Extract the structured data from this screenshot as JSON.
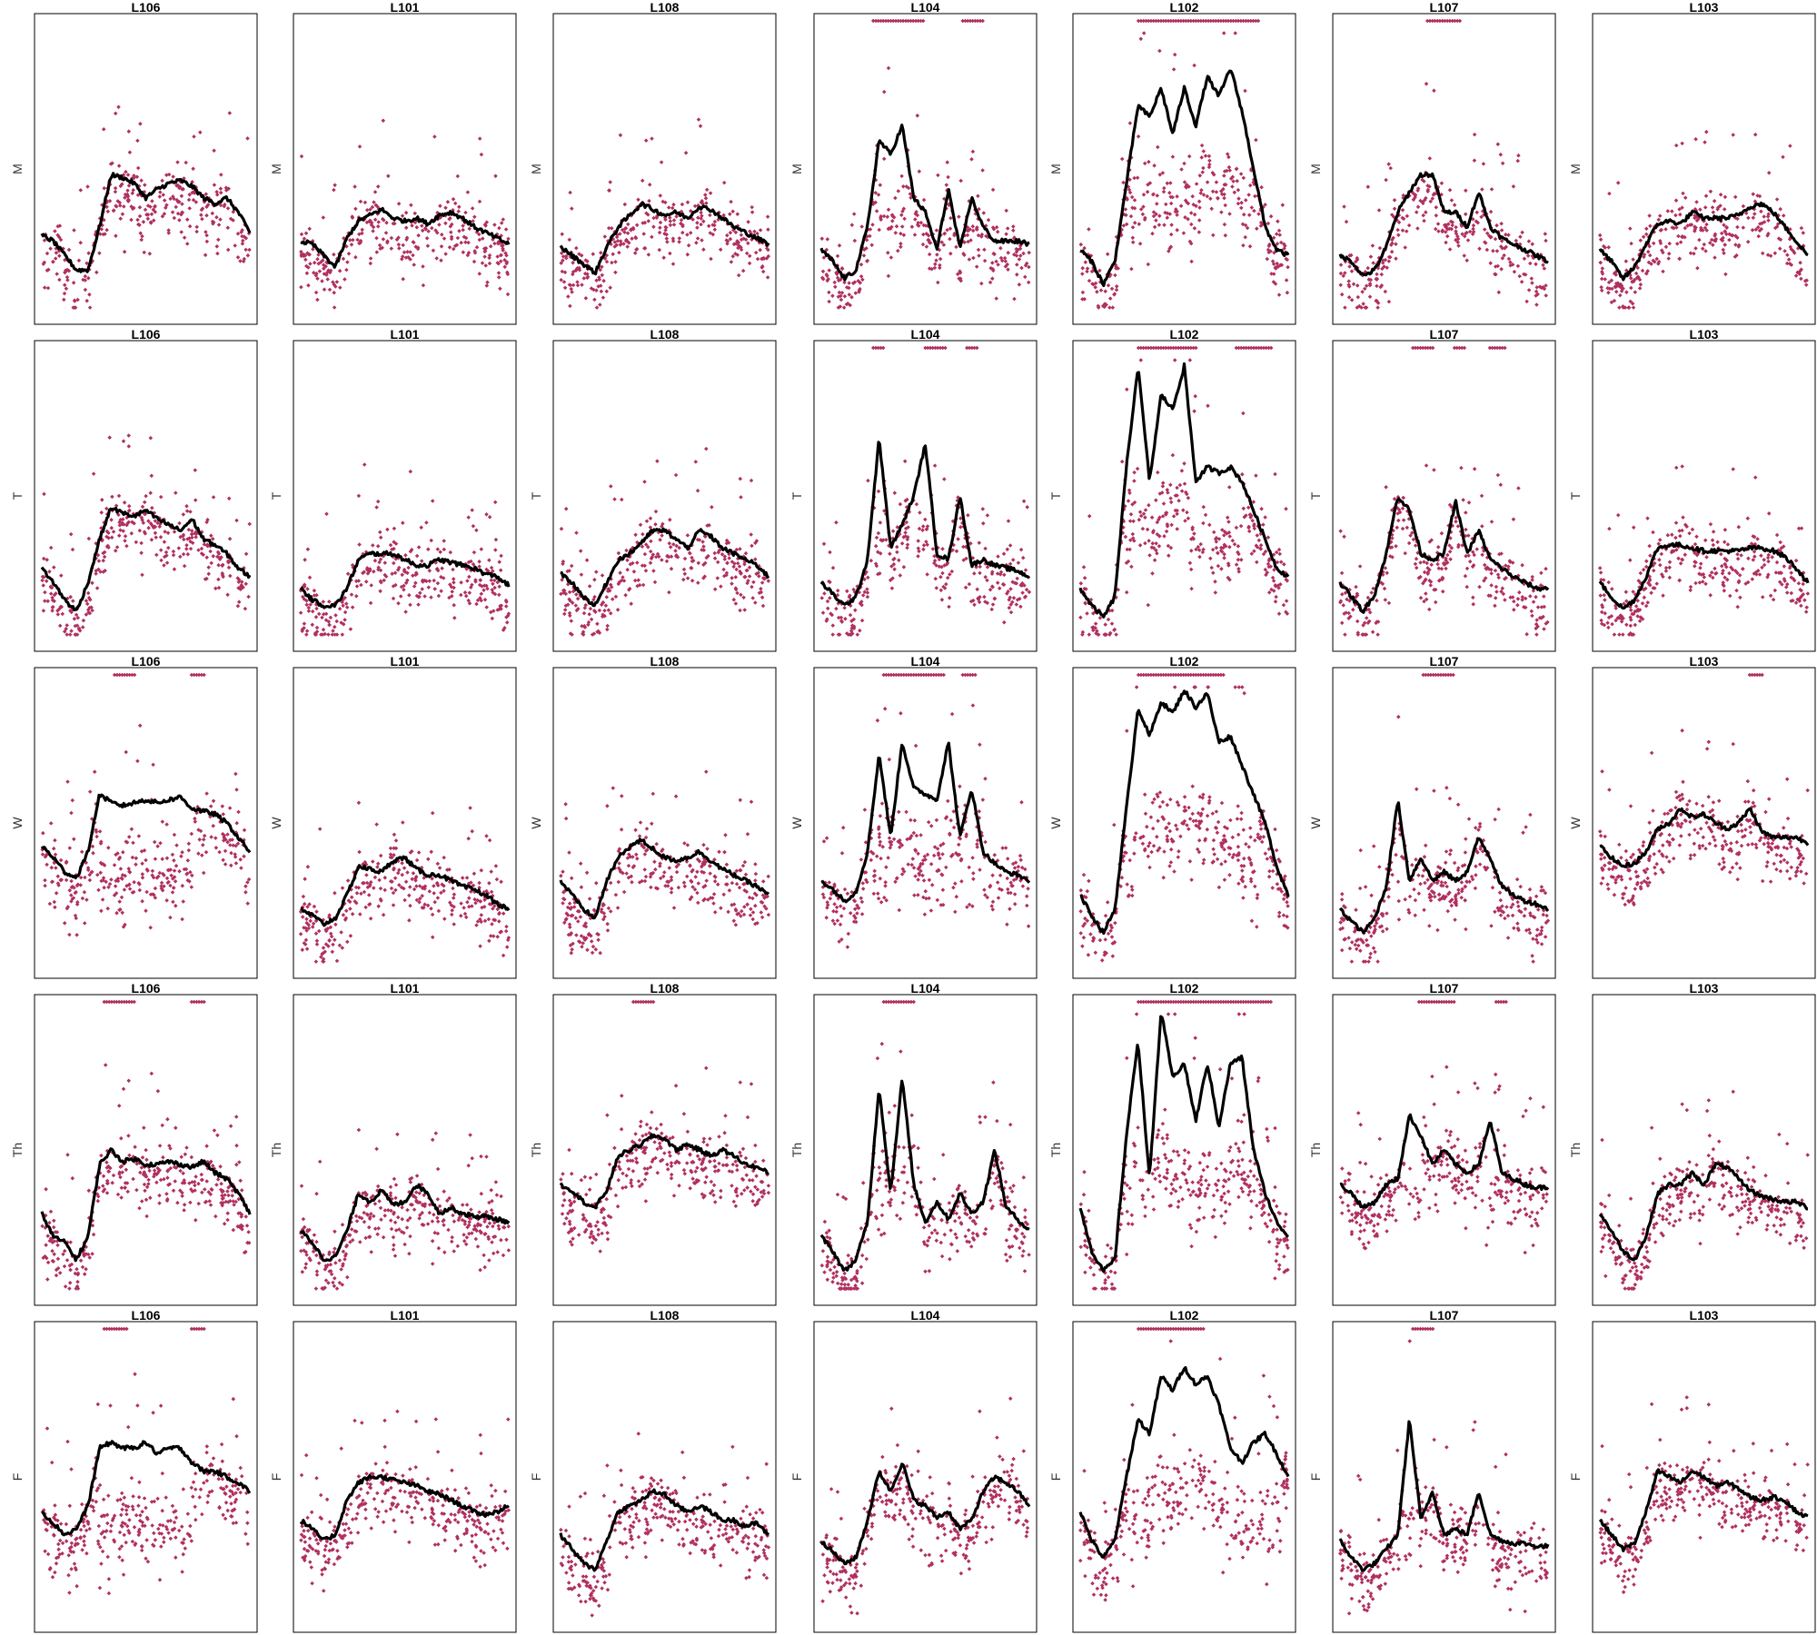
{
  "layout_grid": {
    "rows": 5,
    "cols": 7
  },
  "colors": {
    "points": "#b03060",
    "line": "#000000",
    "frame": "#000000",
    "background": "#ffffff"
  },
  "row_labels": [
    "M",
    "T",
    "W",
    "Th",
    "F"
  ],
  "column_titles": [
    "L106",
    "L101",
    "L108",
    "L104",
    "L102",
    "L107",
    "L103"
  ],
  "chart_data": {
    "type": "scatter",
    "description_of_series": "each panel: scatter of points plus a smoothed black line; points at the top edge mark saturated values",
    "ylim": [
      0,
      1
    ],
    "panels": {
      "M": {
        "L106": {
          "line": [
            0.27,
            0.25,
            0.2,
            0.15,
            0.15,
            0.3,
            0.48,
            0.47,
            0.45,
            0.4,
            0.43,
            0.45,
            0.46,
            0.44,
            0.4,
            0.38,
            0.4,
            0.35,
            0.28
          ],
          "top_flags": []
        },
        "L101": {
          "line": [
            0.25,
            0.24,
            0.2,
            0.16,
            0.26,
            0.32,
            0.34,
            0.36,
            0.33,
            0.32,
            0.33,
            0.31,
            0.34,
            0.35,
            0.33,
            0.3,
            0.28,
            0.26,
            0.24
          ],
          "top_flags": []
        },
        "L108": {
          "line": [
            0.23,
            0.2,
            0.17,
            0.14,
            0.23,
            0.3,
            0.34,
            0.38,
            0.36,
            0.34,
            0.35,
            0.33,
            0.37,
            0.36,
            0.33,
            0.3,
            0.28,
            0.26,
            0.24
          ],
          "top_flags": []
        },
        "L104": {
          "line": [
            0.22,
            0.18,
            0.12,
            0.15,
            0.3,
            0.6,
            0.55,
            0.65,
            0.4,
            0.35,
            0.22,
            0.43,
            0.22,
            0.4,
            0.3,
            0.25,
            0.25,
            0.25,
            0.24
          ],
          "top_flags": [
            [
              0.25,
              0.5
            ],
            [
              0.68,
              0.78
            ]
          ]
        },
        "L102": {
          "line": [
            0.22,
            0.18,
            0.1,
            0.18,
            0.45,
            0.72,
            0.68,
            0.78,
            0.62,
            0.78,
            0.65,
            0.82,
            0.75,
            0.85,
            0.7,
            0.5,
            0.3,
            0.22,
            0.2
          ],
          "top_flags": [
            [
              0.28,
              0.86
            ]
          ]
        },
        "L107": {
          "line": [
            0.2,
            0.18,
            0.13,
            0.15,
            0.23,
            0.35,
            0.42,
            0.48,
            0.48,
            0.35,
            0.35,
            0.3,
            0.42,
            0.3,
            0.26,
            0.24,
            0.22,
            0.2,
            0.18
          ],
          "top_flags": [
            [
              0.42,
              0.58
            ]
          ]
        },
        "L103": {
          "line": [
            0.22,
            0.18,
            0.12,
            0.16,
            0.24,
            0.31,
            0.32,
            0.31,
            0.35,
            0.33,
            0.33,
            0.33,
            0.34,
            0.37,
            0.38,
            0.35,
            0.3,
            0.25,
            0.2
          ],
          "top_flags": []
        }
      },
      "T": {
        "L106": {
          "line": [
            0.25,
            0.2,
            0.14,
            0.1,
            0.2,
            0.35,
            0.46,
            0.44,
            0.43,
            0.45,
            0.42,
            0.4,
            0.38,
            0.42,
            0.35,
            0.33,
            0.3,
            0.25,
            0.22
          ],
          "top_flags": []
        },
        "L101": {
          "line": [
            0.18,
            0.14,
            0.12,
            0.12,
            0.18,
            0.28,
            0.3,
            0.3,
            0.3,
            0.28,
            0.26,
            0.26,
            0.28,
            0.27,
            0.26,
            0.25,
            0.23,
            0.22,
            0.19
          ],
          "top_flags": []
        },
        "L108": {
          "line": [
            0.23,
            0.2,
            0.15,
            0.12,
            0.2,
            0.28,
            0.3,
            0.34,
            0.38,
            0.38,
            0.35,
            0.32,
            0.38,
            0.36,
            0.32,
            0.3,
            0.28,
            0.26,
            0.22
          ],
          "top_flags": []
        },
        "L104": {
          "line": [
            0.2,
            0.16,
            0.12,
            0.15,
            0.28,
            0.7,
            0.32,
            0.4,
            0.5,
            0.68,
            0.3,
            0.28,
            0.5,
            0.26,
            0.28,
            0.26,
            0.25,
            0.24,
            0.22
          ],
          "top_flags": [
            [
              0.25,
              0.3
            ],
            [
              0.5,
              0.6
            ],
            [
              0.7,
              0.75
            ]
          ]
        },
        "L102": {
          "line": [
            0.18,
            0.12,
            0.08,
            0.15,
            0.6,
            0.95,
            0.55,
            0.85,
            0.8,
            0.95,
            0.55,
            0.6,
            0.58,
            0.6,
            0.55,
            0.45,
            0.35,
            0.25,
            0.22
          ],
          "top_flags": [
            [
              0.28,
              0.56
            ],
            [
              0.75,
              0.92
            ]
          ]
        },
        "L107": {
          "line": [
            0.2,
            0.15,
            0.1,
            0.16,
            0.3,
            0.5,
            0.45,
            0.3,
            0.28,
            0.3,
            0.48,
            0.3,
            0.38,
            0.28,
            0.25,
            0.22,
            0.2,
            0.18,
            0.18
          ],
          "top_flags": [
            [
              0.35,
              0.45
            ],
            [
              0.55,
              0.6
            ],
            [
              0.72,
              0.8
            ]
          ]
        },
        "L103": {
          "line": [
            0.2,
            0.15,
            0.11,
            0.14,
            0.22,
            0.32,
            0.33,
            0.33,
            0.32,
            0.31,
            0.31,
            0.31,
            0.31,
            0.32,
            0.32,
            0.31,
            0.29,
            0.25,
            0.2
          ],
          "top_flags": []
        }
      },
      "W": {
        "L106": {
          "line": [
            0.42,
            0.38,
            0.33,
            0.31,
            0.4,
            0.6,
            0.57,
            0.56,
            0.57,
            0.58,
            0.57,
            0.58,
            0.59,
            0.55,
            0.54,
            0.53,
            0.5,
            0.45,
            0.4
          ],
          "top_flags": [
            [
              0.35,
              0.45
            ],
            [
              0.72,
              0.78
            ]
          ]
        },
        "L101": {
          "line": [
            0.2,
            0.18,
            0.15,
            0.17,
            0.25,
            0.35,
            0.34,
            0.33,
            0.37,
            0.38,
            0.34,
            0.32,
            0.32,
            0.3,
            0.28,
            0.27,
            0.25,
            0.22,
            0.2
          ],
          "top_flags": []
        },
        "L108": {
          "line": [
            0.3,
            0.25,
            0.2,
            0.17,
            0.3,
            0.38,
            0.42,
            0.44,
            0.41,
            0.38,
            0.37,
            0.38,
            0.4,
            0.37,
            0.34,
            0.32,
            0.3,
            0.28,
            0.25
          ],
          "top_flags": []
        },
        "L104": {
          "line": [
            0.3,
            0.27,
            0.23,
            0.26,
            0.4,
            0.74,
            0.45,
            0.78,
            0.62,
            0.6,
            0.58,
            0.78,
            0.45,
            0.62,
            0.4,
            0.36,
            0.33,
            0.32,
            0.3
          ],
          "top_flags": [
            [
              0.3,
              0.6
            ],
            [
              0.68,
              0.75
            ]
          ]
        },
        "L102": {
          "line": [
            0.25,
            0.18,
            0.12,
            0.2,
            0.55,
            0.9,
            0.8,
            0.92,
            0.88,
            0.96,
            0.9,
            0.95,
            0.78,
            0.8,
            0.7,
            0.6,
            0.5,
            0.35,
            0.25
          ],
          "top_flags": [
            [
              0.28,
              0.7
            ]
          ]
        },
        "L107": {
          "line": [
            0.2,
            0.16,
            0.12,
            0.17,
            0.28,
            0.58,
            0.3,
            0.38,
            0.3,
            0.33,
            0.3,
            0.33,
            0.45,
            0.38,
            0.28,
            0.25,
            0.23,
            0.22,
            0.2
          ],
          "top_flags": [
            [
              0.4,
              0.55
            ]
          ]
        },
        "L103": {
          "line": [
            0.42,
            0.38,
            0.35,
            0.36,
            0.4,
            0.48,
            0.5,
            0.55,
            0.52,
            0.53,
            0.5,
            0.48,
            0.5,
            0.55,
            0.47,
            0.45,
            0.45,
            0.45,
            0.43
          ],
          "top_flags": [
            [
              0.72,
              0.78
            ]
          ]
        }
      },
      "Th": {
        "L106": {
          "line": [
            0.28,
            0.2,
            0.18,
            0.12,
            0.2,
            0.45,
            0.5,
            0.46,
            0.47,
            0.45,
            0.45,
            0.46,
            0.45,
            0.44,
            0.46,
            0.42,
            0.4,
            0.35,
            0.28
          ],
          "top_flags": [
            [
              0.3,
              0.45
            ],
            [
              0.72,
              0.78
            ]
          ]
        },
        "L101": {
          "line": [
            0.22,
            0.18,
            0.12,
            0.13,
            0.22,
            0.35,
            0.32,
            0.36,
            0.31,
            0.32,
            0.38,
            0.35,
            0.28,
            0.3,
            0.28,
            0.27,
            0.27,
            0.26,
            0.25
          ],
          "top_flags": []
        },
        "L108": {
          "line": [
            0.38,
            0.36,
            0.32,
            0.3,
            0.36,
            0.48,
            0.5,
            0.52,
            0.55,
            0.54,
            0.5,
            0.52,
            0.5,
            0.48,
            0.5,
            0.48,
            0.45,
            0.44,
            0.42
          ],
          "top_flags": [
            [
              0.35,
              0.45
            ]
          ]
        },
        "L104": {
          "line": [
            0.2,
            0.15,
            0.08,
            0.12,
            0.25,
            0.72,
            0.35,
            0.75,
            0.38,
            0.25,
            0.32,
            0.26,
            0.35,
            0.28,
            0.32,
            0.5,
            0.3,
            0.26,
            0.22
          ],
          "top_flags": [
            [
              0.3,
              0.45
            ]
          ]
        },
        "L102": {
          "line": [
            0.3,
            0.15,
            0.08,
            0.12,
            0.55,
            0.88,
            0.4,
            0.98,
            0.75,
            0.8,
            0.6,
            0.8,
            0.58,
            0.8,
            0.82,
            0.5,
            0.35,
            0.25,
            0.2
          ],
          "top_flags": [
            [
              0.28,
              0.92
            ]
          ]
        },
        "L107": {
          "line": [
            0.38,
            0.35,
            0.3,
            0.32,
            0.38,
            0.4,
            0.62,
            0.55,
            0.45,
            0.5,
            0.45,
            0.42,
            0.45,
            0.6,
            0.42,
            0.4,
            0.38,
            0.37,
            0.37
          ],
          "top_flags": [
            [
              0.38,
              0.55
            ],
            [
              0.75,
              0.8
            ]
          ]
        },
        "L103": {
          "line": [
            0.28,
            0.22,
            0.15,
            0.12,
            0.2,
            0.35,
            0.38,
            0.38,
            0.42,
            0.38,
            0.45,
            0.44,
            0.4,
            0.36,
            0.34,
            0.33,
            0.32,
            0.32,
            0.3
          ],
          "top_flags": []
        }
      },
      "F": {
        "L106": {
          "line": [
            0.38,
            0.34,
            0.3,
            0.32,
            0.4,
            0.6,
            0.62,
            0.6,
            0.6,
            0.62,
            0.58,
            0.6,
            0.6,
            0.55,
            0.52,
            0.52,
            0.5,
            0.48,
            0.45
          ],
          "top_flags": [
            [
              0.3,
              0.42
            ],
            [
              0.72,
              0.78
            ]
          ]
        },
        "L101": {
          "line": [
            0.35,
            0.32,
            0.28,
            0.3,
            0.42,
            0.48,
            0.5,
            0.5,
            0.49,
            0.48,
            0.47,
            0.45,
            0.44,
            0.42,
            0.4,
            0.38,
            0.37,
            0.38,
            0.4
          ],
          "top_flags": []
        },
        "L108": {
          "line": [
            0.3,
            0.25,
            0.2,
            0.18,
            0.28,
            0.38,
            0.4,
            0.42,
            0.45,
            0.44,
            0.4,
            0.38,
            0.4,
            0.38,
            0.35,
            0.35,
            0.33,
            0.34,
            0.3
          ],
          "top_flags": []
        },
        "L104": {
          "line": [
            0.28,
            0.24,
            0.2,
            0.22,
            0.35,
            0.52,
            0.45,
            0.55,
            0.42,
            0.4,
            0.36,
            0.38,
            0.32,
            0.35,
            0.45,
            0.5,
            0.48,
            0.45,
            0.4
          ],
          "top_flags": []
        },
        "L102": {
          "line": [
            0.38,
            0.28,
            0.22,
            0.28,
            0.5,
            0.7,
            0.65,
            0.85,
            0.8,
            0.88,
            0.82,
            0.85,
            0.75,
            0.6,
            0.55,
            0.62,
            0.65,
            0.58,
            0.5
          ],
          "top_flags": [
            [
              0.28,
              0.6
            ]
          ]
        },
        "L107": {
          "line": [
            0.28,
            0.22,
            0.18,
            0.2,
            0.25,
            0.3,
            0.7,
            0.35,
            0.45,
            0.3,
            0.32,
            0.3,
            0.45,
            0.3,
            0.28,
            0.27,
            0.27,
            0.26,
            0.26
          ],
          "top_flags": [
            [
              0.35,
              0.45
            ]
          ]
        },
        "L103": {
          "line": [
            0.35,
            0.3,
            0.25,
            0.27,
            0.38,
            0.52,
            0.5,
            0.48,
            0.52,
            0.5,
            0.47,
            0.48,
            0.46,
            0.43,
            0.42,
            0.43,
            0.42,
            0.38,
            0.36
          ],
          "top_flags": []
        }
      }
    }
  }
}
